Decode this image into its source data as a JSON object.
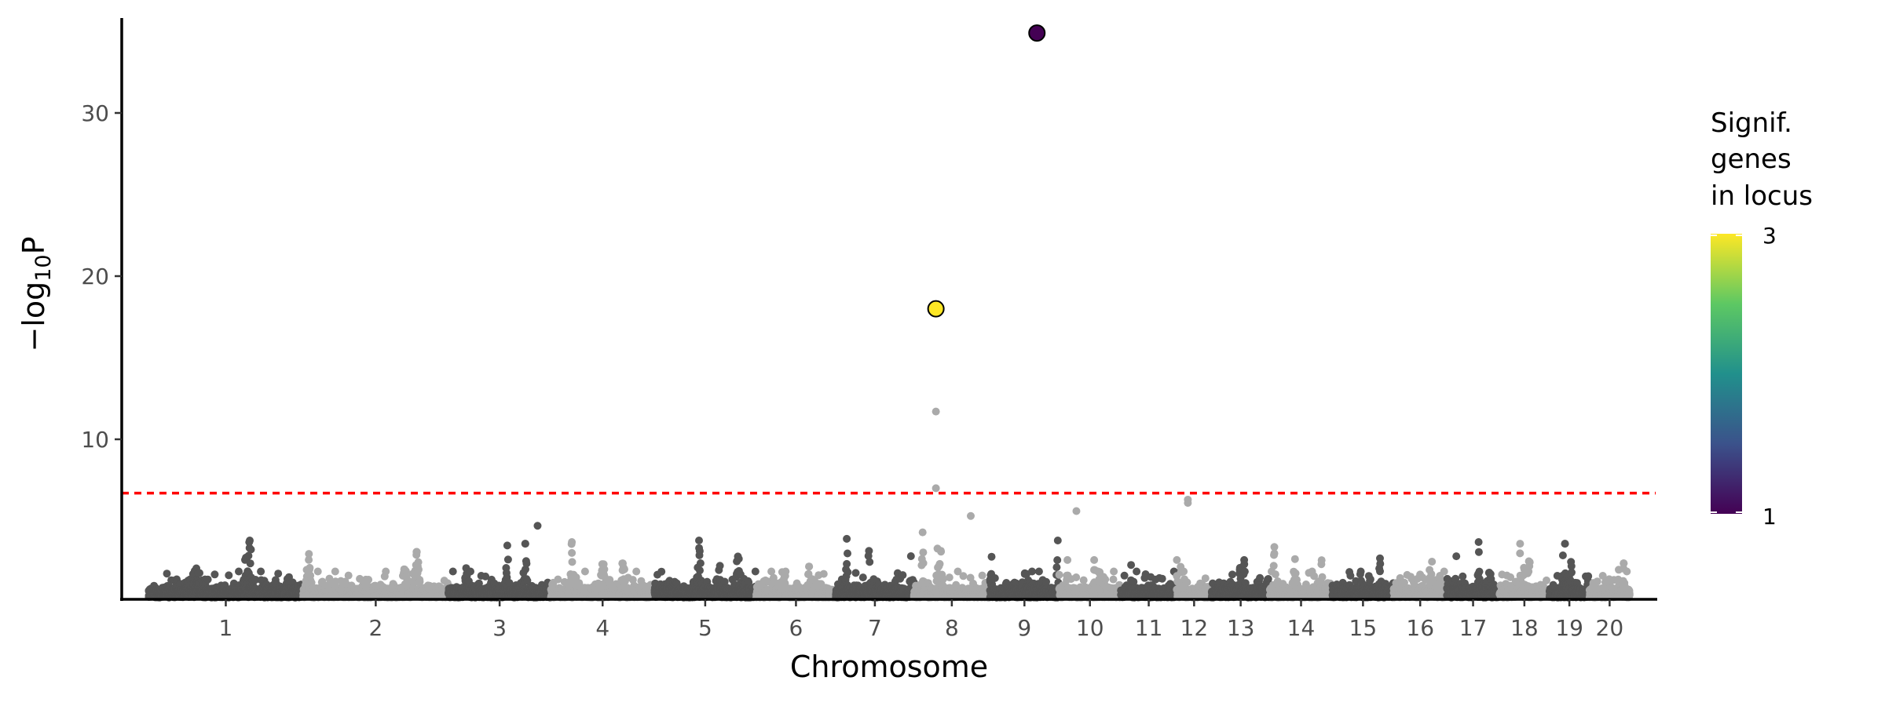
{
  "chart_data": {
    "type": "scatter",
    "subtype": "manhattan",
    "title": "",
    "xlabel": "Chromosome",
    "ylabel": "-log10P",
    "ylabel_parts": {
      "prefix": "−log",
      "sub": "10",
      "suffix": "P"
    },
    "ylim": [
      0,
      35.8
    ],
    "yticks": [
      10,
      20,
      30
    ],
    "grid": false,
    "threshold": {
      "value": 6.7,
      "color": "#ff0000",
      "style": "dashed"
    },
    "colors": {
      "dark": "#555555",
      "light": "#aaaaaa"
    },
    "chromosomes": [
      {
        "label": "1",
        "length": 196,
        "max": 3.8,
        "shade": "dark"
      },
      {
        "label": "2",
        "length": 184,
        "max": 3.1,
        "shade": "light"
      },
      {
        "label": "3",
        "length": 130,
        "max": 3.6,
        "shade": "dark"
      },
      {
        "label": "4",
        "length": 131,
        "max": 3.7,
        "shade": "light"
      },
      {
        "label": "5",
        "length": 129,
        "max": 3.8,
        "shade": "dark"
      },
      {
        "label": "6",
        "length": 101,
        "max": 2.2,
        "shade": "light"
      },
      {
        "label": "7",
        "length": 99,
        "max": 3.9,
        "shade": "dark"
      },
      {
        "label": "8",
        "length": 96,
        "max": 4.3,
        "shade": "light"
      },
      {
        "label": "9",
        "length": 88,
        "max": 3.8,
        "shade": "dark"
      },
      {
        "label": "10",
        "length": 78,
        "max": 2.6,
        "shade": "light"
      },
      {
        "label": "11",
        "length": 71,
        "max": 2.3,
        "shade": "dark"
      },
      {
        "label": "12",
        "length": 44,
        "max": 2.6,
        "shade": "light"
      },
      {
        "label": "13",
        "length": 74,
        "max": 2.6,
        "shade": "dark"
      },
      {
        "label": "14",
        "length": 79,
        "max": 3.4,
        "shade": "light"
      },
      {
        "label": "15",
        "length": 78,
        "max": 2.7,
        "shade": "dark"
      },
      {
        "label": "16",
        "length": 67,
        "max": 2.5,
        "shade": "light"
      },
      {
        "label": "17",
        "length": 67,
        "max": 3.7,
        "shade": "dark"
      },
      {
        "label": "18",
        "length": 63,
        "max": 3.6,
        "shade": "light"
      },
      {
        "label": "19",
        "length": 51,
        "max": 3.6,
        "shade": "dark"
      },
      {
        "label": "20",
        "length": 51,
        "max": 2.4,
        "shade": "light"
      }
    ],
    "notable_points": [
      {
        "chrom": "3",
        "pos": 0.87,
        "y": 4.7
      },
      {
        "chrom": "8",
        "pos": 0.29,
        "y": 11.7
      },
      {
        "chrom": "8",
        "pos": 0.29,
        "y": 7.0
      },
      {
        "chrom": "8",
        "pos": 0.75,
        "y": 5.3
      },
      {
        "chrom": "10",
        "pos": 0.28,
        "y": 5.6
      },
      {
        "chrom": "12",
        "pos": 0.32,
        "y": 6.1
      },
      {
        "chrom": "12",
        "pos": 0.32,
        "y": 6.3
      }
    ],
    "lead_points": [
      {
        "chrom": "9",
        "pos": 0.68,
        "y": 34.9,
        "signif_genes": 1
      },
      {
        "chrom": "8",
        "pos": 0.29,
        "y": 18.0,
        "signif_genes": 3
      }
    ],
    "legend": {
      "title_lines": [
        "Signif.",
        "genes",
        "in locus"
      ],
      "min": 1,
      "max": 3,
      "min_label": "1",
      "max_label": "3",
      "placement": "right",
      "palette": [
        "#440154",
        "#3b528b",
        "#21908c",
        "#5dc863",
        "#fde725"
      ]
    }
  }
}
